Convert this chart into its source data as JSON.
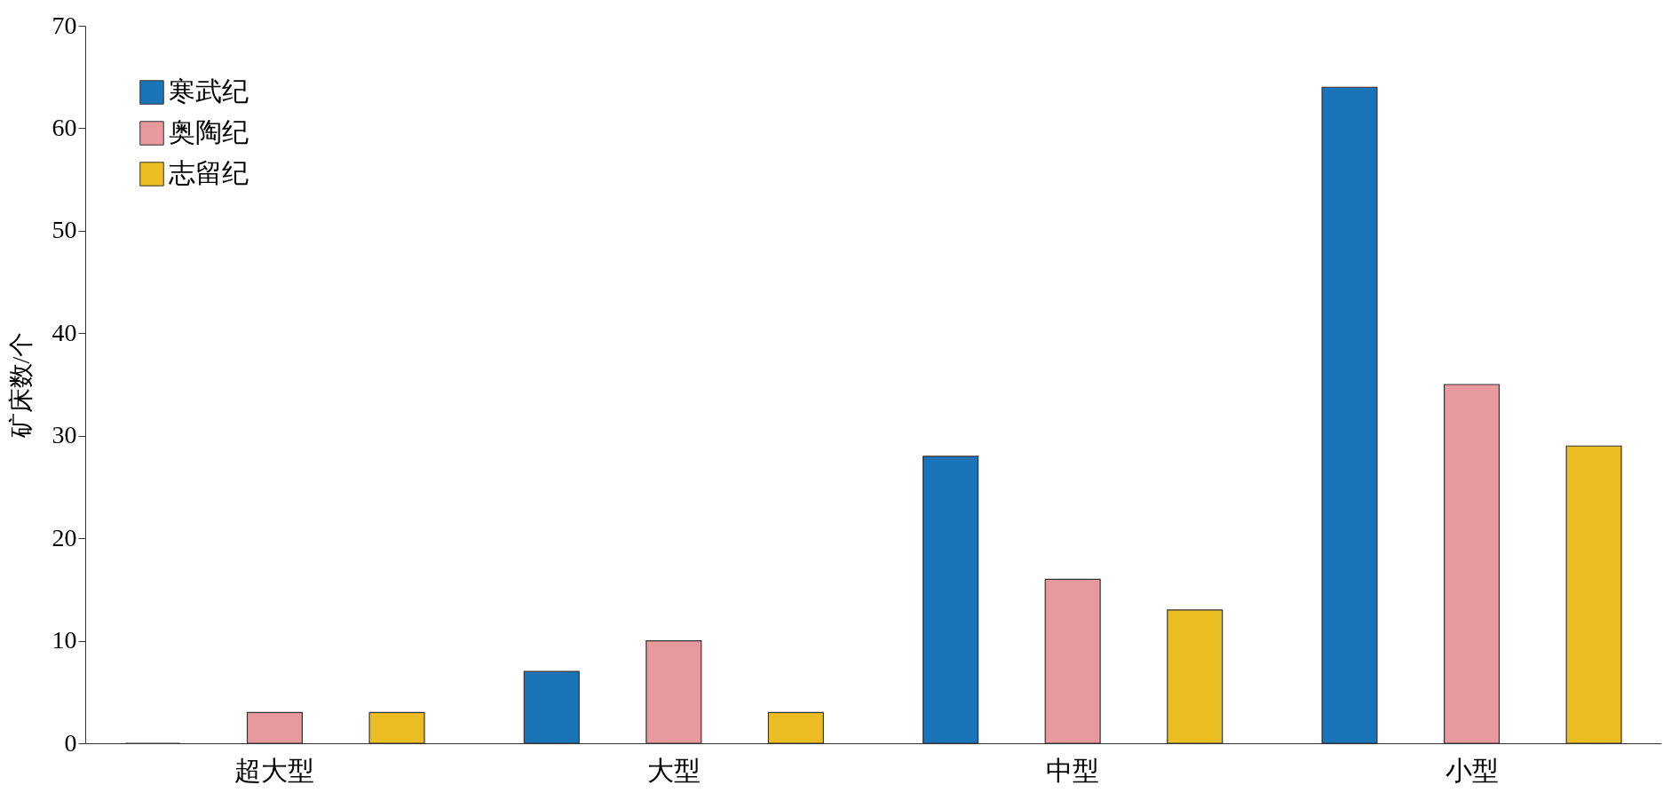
{
  "chart_data": {
    "type": "bar",
    "ylabel": "矿床数/个",
    "categories": [
      "超大型",
      "大型",
      "中型",
      "小型"
    ],
    "series": [
      {
        "name": "寒武纪",
        "color": "#1a75b8",
        "values": [
          0,
          7,
          28,
          64
        ]
      },
      {
        "name": "奥陶纪",
        "color": "#e8999e",
        "values": [
          3,
          10,
          16,
          35
        ]
      },
      {
        "name": "志留纪",
        "color": "#ecbd22",
        "values": [
          3,
          3,
          13,
          29
        ]
      }
    ],
    "ylim": [
      0,
      70
    ],
    "yticks": [
      0,
      10,
      20,
      30,
      40,
      50,
      60,
      70
    ],
    "grid": false,
    "legend": "top left"
  }
}
